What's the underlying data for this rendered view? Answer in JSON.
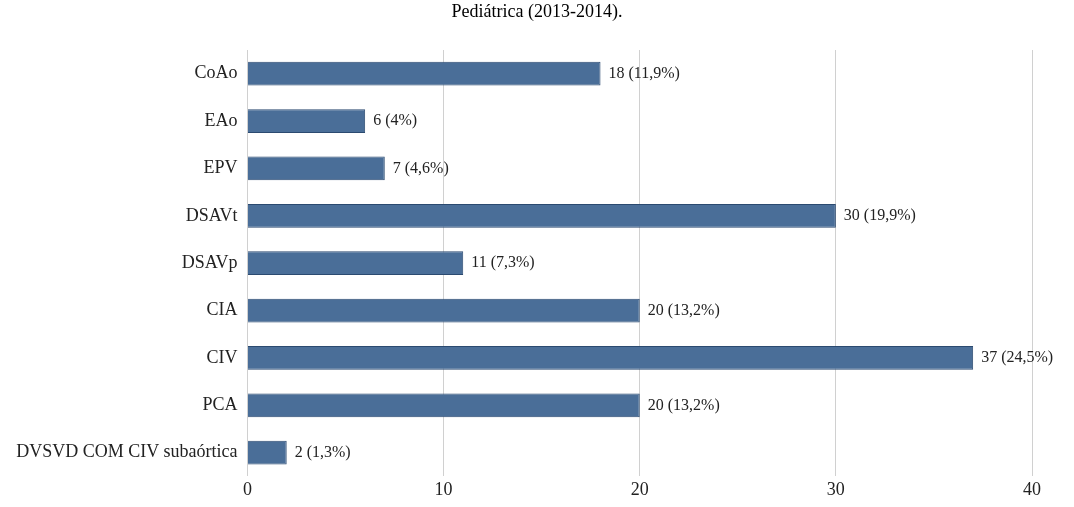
{
  "chart_data": {
    "type": "bar",
    "orientation": "horizontal",
    "title": "Pediátrica (2013-2014).",
    "categories": [
      "CoAo",
      "EAo",
      "EPV",
      "DSAVt",
      "DSAVp",
      "CIA",
      "CIV",
      "PCA",
      "DVSVD COM CIV subaórtica"
    ],
    "values": [
      18,
      6,
      7,
      30,
      11,
      20,
      37,
      20,
      2
    ],
    "value_labels": [
      "18 (11,9%)",
      "6 (4%)",
      "7 (4,6%)",
      "30 (19,9%)",
      "11 (7,3%)",
      "20 (13,2%)",
      "37 (24,5%)",
      "20 (13,2%)",
      "2 (1,3%)"
    ],
    "color": "#4a6e98",
    "xlim": [
      0,
      40
    ],
    "xticks": [
      0,
      10,
      20,
      30,
      40
    ],
    "grid": "x",
    "legend": false
  }
}
